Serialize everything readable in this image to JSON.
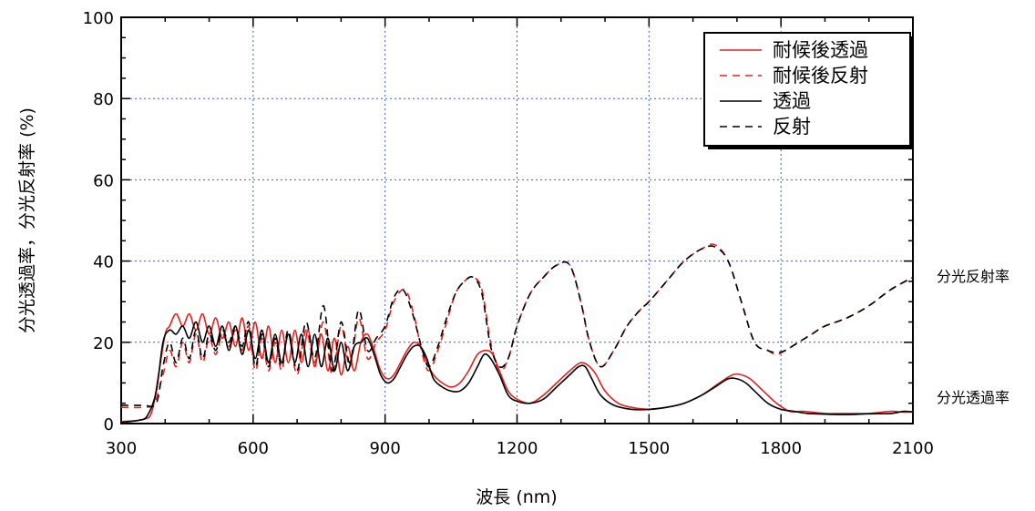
{
  "chart_data": {
    "type": "line",
    "xlabel": "波長 (nm)",
    "ylabel": "分光透過率，分光反射率 (%)",
    "xlim": [
      300,
      2100
    ],
    "ylim": [
      0,
      100
    ],
    "xticks": [
      300,
      600,
      900,
      1200,
      1500,
      1800,
      2100
    ],
    "yticks": [
      0,
      20,
      40,
      60,
      80,
      100
    ],
    "grid": true,
    "legend_position": "top-right",
    "annotations": [
      {
        "text": "分光反射率",
        "x": 2100,
        "y": 36
      },
      {
        "text": "分光透過率",
        "x": 2100,
        "y": 7
      }
    ],
    "series": [
      {
        "name": "耐候後透過",
        "color": "#e8201c",
        "dash": "solid",
        "x": [
          300,
          350,
          370,
          385,
          400,
          410,
          425,
          440,
          455,
          470,
          485,
          500,
          515,
          530,
          545,
          560,
          575,
          590,
          605,
          620,
          635,
          650,
          665,
          680,
          695,
          710,
          725,
          740,
          755,
          770,
          785,
          800,
          815,
          830,
          845,
          860,
          875,
          890,
          905,
          920,
          935,
          950,
          965,
          980,
          995,
          1010,
          1030,
          1050,
          1070,
          1090,
          1110,
          1130,
          1145,
          1160,
          1180,
          1200,
          1230,
          1260,
          1290,
          1320,
          1345,
          1365,
          1380,
          1400,
          1430,
          1460,
          1500,
          1540,
          1580,
          1620,
          1660,
          1690,
          1710,
          1730,
          1760,
          1790,
          1820,
          1850,
          1900,
          1950,
          2000,
          2050,
          2080,
          2100
        ],
        "y": [
          0.5,
          1,
          3,
          12,
          22,
          24,
          27,
          24,
          27,
          23,
          27,
          22,
          26,
          21,
          25,
          19,
          26,
          18,
          25,
          16,
          24,
          15,
          23,
          15,
          23,
          15,
          23,
          14,
          22,
          13,
          21,
          12,
          19,
          13,
          20,
          22,
          18,
          13,
          11,
          12,
          15,
          18,
          20,
          19,
          15,
          12,
          10,
          9,
          10,
          13,
          17,
          18,
          17,
          13,
          8,
          6,
          5,
          7,
          10,
          13,
          15,
          14,
          12,
          8,
          5,
          4,
          3.5,
          4,
          5,
          7,
          10,
          12,
          12,
          11,
          8,
          5,
          3,
          3,
          2.5,
          2.5,
          2.5,
          3,
          2.8,
          3
        ]
      },
      {
        "name": "耐候後反射",
        "color": "#e8201c",
        "dash": "dashed",
        "x": [
          300,
          350,
          375,
          395,
          410,
          425,
          440,
          455,
          470,
          485,
          500,
          515,
          530,
          545,
          560,
          575,
          590,
          605,
          620,
          635,
          650,
          665,
          680,
          700,
          720,
          740,
          760,
          780,
          800,
          820,
          840,
          860,
          880,
          900,
          920,
          945,
          965,
          985,
          1000,
          1020,
          1040,
          1060,
          1080,
          1100,
          1120,
          1140,
          1160,
          1180,
          1200,
          1230,
          1260,
          1290,
          1320,
          1345,
          1365,
          1390,
          1420,
          1450,
          1480,
          1500,
          1540,
          1580,
          1620,
          1650,
          1680,
          1710,
          1740,
          1770,
          1790,
          1810,
          1840,
          1870,
          1900,
          1950,
          2000,
          2050,
          2100
        ],
        "y": [
          4,
          4,
          5,
          12,
          18,
          14,
          20,
          15,
          22,
          15,
          21,
          17,
          22,
          19,
          23,
          18,
          24,
          13,
          21,
          13,
          20,
          13,
          22,
          12,
          23,
          15,
          25,
          12,
          24,
          14,
          26,
          16,
          20,
          23,
          30,
          33,
          27,
          17,
          13,
          18,
          25,
          32,
          35,
          36,
          33,
          20,
          13,
          16,
          24,
          32,
          36,
          39,
          39,
          30,
          20,
          14,
          18,
          24,
          28,
          30,
          35,
          40,
          43,
          44,
          40,
          30,
          20,
          18,
          17,
          18,
          20,
          22,
          24,
          26,
          29,
          33,
          36
        ]
      },
      {
        "name": "透過",
        "color": "#000000",
        "dash": "solid",
        "x": [
          300,
          340,
          360,
          380,
          395,
          410,
          425,
          440,
          455,
          470,
          485,
          500,
          515,
          530,
          545,
          560,
          575,
          590,
          605,
          620,
          635,
          650,
          665,
          680,
          695,
          710,
          725,
          740,
          755,
          770,
          785,
          800,
          815,
          830,
          845,
          860,
          875,
          890,
          905,
          920,
          935,
          950,
          965,
          980,
          995,
          1010,
          1030,
          1050,
          1070,
          1090,
          1110,
          1125,
          1140,
          1160,
          1180,
          1200,
          1230,
          1260,
          1290,
          1320,
          1340,
          1355,
          1370,
          1390,
          1420,
          1460,
          1500,
          1540,
          1580,
          1620,
          1650,
          1680,
          1700,
          1720,
          1740,
          1770,
          1800,
          1830,
          1860,
          1900,
          1950,
          2000,
          2050,
          2080,
          2100
        ],
        "y": [
          0.3,
          0.8,
          2,
          8,
          20,
          23,
          22,
          24,
          21,
          25,
          20,
          24,
          19,
          24,
          18,
          24,
          17,
          23,
          16,
          23,
          15,
          22,
          15,
          22,
          15,
          22,
          14,
          22,
          14,
          21,
          13,
          20,
          13,
          19,
          20,
          21,
          17,
          12,
          10,
          11,
          14,
          17,
          19,
          19,
          16,
          11,
          9,
          8,
          8,
          10,
          14,
          17,
          16,
          12,
          7,
          5.5,
          5,
          6,
          9,
          12,
          14,
          14,
          11,
          7,
          4.5,
          3.5,
          3.5,
          4,
          5,
          7,
          9,
          11,
          11,
          10,
          8,
          5,
          3.5,
          3,
          2.5,
          2.3,
          2.2,
          2.4,
          2.5,
          3,
          2.8
        ]
      },
      {
        "name": "反射",
        "color": "#000000",
        "dash": "dashed",
        "x": [
          300,
          350,
          380,
          395,
          410,
          425,
          440,
          455,
          470,
          485,
          500,
          515,
          530,
          545,
          560,
          575,
          590,
          605,
          620,
          635,
          650,
          665,
          680,
          700,
          720,
          740,
          760,
          780,
          800,
          820,
          840,
          860,
          880,
          900,
          920,
          940,
          960,
          985,
          1000,
          1020,
          1040,
          1060,
          1080,
          1100,
          1120,
          1140,
          1160,
          1180,
          1200,
          1230,
          1260,
          1290,
          1320,
          1345,
          1365,
          1390,
          1420,
          1450,
          1480,
          1500,
          1540,
          1580,
          1620,
          1650,
          1680,
          1710,
          1740,
          1770,
          1790,
          1810,
          1840,
          1870,
          1900,
          1950,
          2000,
          2050,
          2100
        ],
        "y": [
          4.5,
          4.5,
          5,
          14,
          20,
          15,
          21,
          16,
          23,
          16,
          22,
          18,
          23,
          20,
          24,
          19,
          25,
          14,
          22,
          14,
          21,
          14,
          23,
          13,
          25,
          16,
          29,
          13,
          25,
          15,
          28,
          18,
          21,
          24,
          31,
          33,
          28,
          18,
          14,
          19,
          26,
          32,
          35,
          36,
          32,
          19,
          14,
          16,
          24,
          32,
          36,
          39,
          39,
          30,
          20,
          14,
          18,
          24,
          28,
          30,
          35,
          40,
          43,
          43.5,
          40,
          30,
          20,
          18,
          17.5,
          18,
          20,
          22,
          24,
          26,
          29,
          33,
          36
        ]
      }
    ]
  }
}
